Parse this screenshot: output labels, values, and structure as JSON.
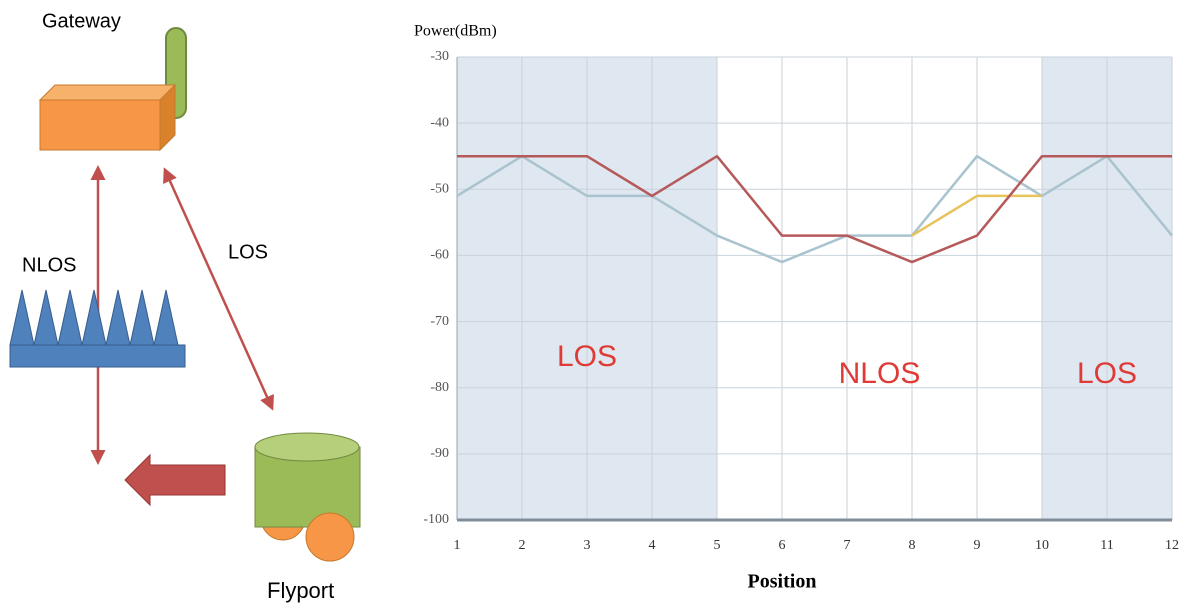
{
  "diagram": {
    "gateway": "Gateway",
    "nlos": "NLOS",
    "los": "LOS",
    "flyport": "Flyport"
  },
  "chart_data": {
    "type": "line",
    "y_label": "Power(dBm)",
    "x_label": "Position",
    "x": [
      1,
      2,
      3,
      4,
      5,
      6,
      7,
      8,
      9,
      10,
      11,
      12
    ],
    "xlim": [
      1,
      12
    ],
    "xticks": [
      1,
      2,
      3,
      4,
      5,
      6,
      7,
      8,
      9,
      10,
      11,
      12
    ],
    "ylim": [
      -100,
      -30
    ],
    "yticks": [
      -30,
      -40,
      -50,
      -60,
      -70,
      -80,
      -90,
      -100
    ],
    "grid": true,
    "regions": [
      {
        "label": "LOS",
        "x": [
          1,
          5
        ],
        "color": "#dfe7f0"
      },
      {
        "label": "NLOS",
        "x": [
          5,
          10
        ],
        "color": "#ffffff"
      },
      {
        "label": "LOS",
        "x": [
          10,
          12
        ],
        "color": "#dfe7f0"
      }
    ],
    "series": [
      {
        "color": "#a9c3cf",
        "values": [
          -51,
          -45,
          -51,
          -51,
          -57,
          -61,
          -57,
          -57,
          -45,
          -51,
          -45,
          -57
        ]
      },
      {
        "color": "#e8c25a",
        "values": [
          null,
          null,
          null,
          null,
          null,
          null,
          null,
          -57,
          -51,
          -51,
          null,
          null
        ]
      },
      {
        "color": "#b55a5a",
        "values": [
          -45,
          -45,
          -45,
          -51,
          -45,
          -57,
          -57,
          -61,
          -57,
          -45,
          -45,
          -45
        ]
      }
    ]
  }
}
